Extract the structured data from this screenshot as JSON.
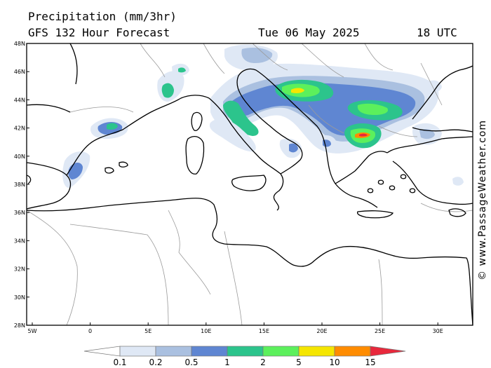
{
  "header": {
    "title": "Precipitation (mm/3hr)",
    "model": "GFS 132 Hour Forecast",
    "date": "Tue 06 May 2025",
    "time": "18 UTC"
  },
  "credit": "© www.PassageWeather.com",
  "axes": {
    "lat_labels": [
      "48N",
      "46N",
      "44N",
      "42N",
      "40N",
      "38N",
      "36N",
      "34N",
      "32N",
      "30N",
      "28N"
    ],
    "lon_labels": [
      "5W",
      "0",
      "5E",
      "10E",
      "15E",
      "20E",
      "25E",
      "30E"
    ]
  },
  "legend": {
    "levels": [
      "0.1",
      "0.2",
      "0.5",
      "1",
      "2",
      "5",
      "10",
      "15"
    ],
    "colors": [
      "#ffffff",
      "#dfe8f5",
      "#aac0e0",
      "#5f86d2",
      "#2cc48c",
      "#5cf05c",
      "#f5e600",
      "#ff8c00",
      "#e8283c",
      "#e8283c"
    ]
  },
  "colors": {
    "coast": "#000000",
    "border": "#9a9a9a",
    "frame": "#000000"
  }
}
